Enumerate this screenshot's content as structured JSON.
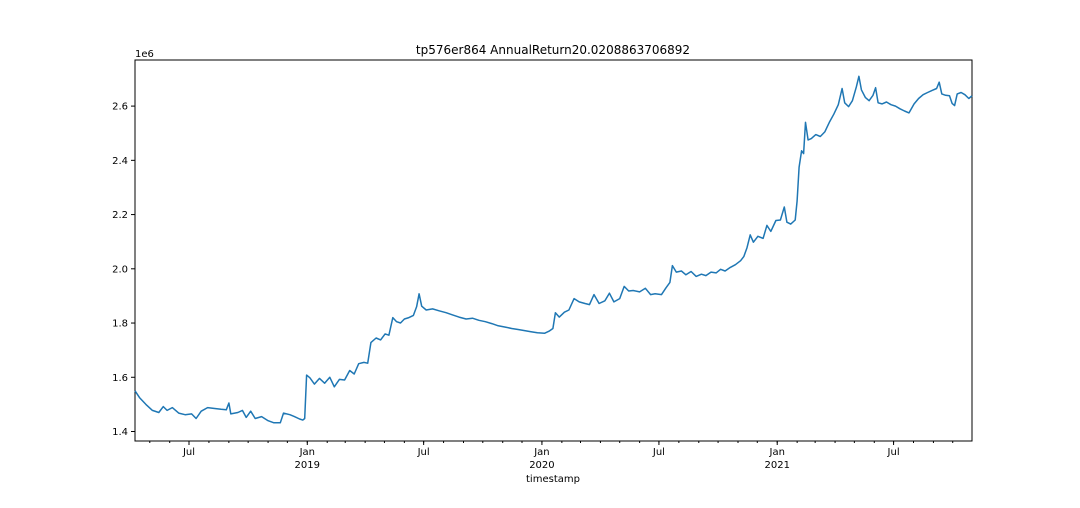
{
  "chart_data": {
    "type": "line",
    "title": "tp576er864 AnnualReturn20.0208863706892",
    "xlabel": "timestamp",
    "ylabel": "",
    "y_offset_label": "1e6",
    "x_range": [
      "2018-04-08",
      "2021-10-31"
    ],
    "ylim": [
      1365000,
      2770000
    ],
    "y_ticks": [
      {
        "value": 1400000,
        "label": "1.4"
      },
      {
        "value": 1600000,
        "label": "1.6"
      },
      {
        "value": 1800000,
        "label": "1.8"
      },
      {
        "value": 2000000,
        "label": "2.0"
      },
      {
        "value": 2200000,
        "label": "2.2"
      },
      {
        "value": 2400000,
        "label": "2.4"
      },
      {
        "value": 2600000,
        "label": "2.6"
      }
    ],
    "x_major_ticks": [
      {
        "date": "2018-07-01",
        "label": "Jul",
        "sublabel": ""
      },
      {
        "date": "2019-01-01",
        "label": "Jan",
        "sublabel": "2019"
      },
      {
        "date": "2019-07-01",
        "label": "Jul",
        "sublabel": ""
      },
      {
        "date": "2020-01-01",
        "label": "Jan",
        "sublabel": "2020"
      },
      {
        "date": "2020-07-01",
        "label": "Jul",
        "sublabel": ""
      },
      {
        "date": "2021-01-01",
        "label": "Jan",
        "sublabel": "2021"
      },
      {
        "date": "2021-07-01",
        "label": "Jul",
        "sublabel": ""
      }
    ],
    "grid": false,
    "line_color": "#1f77b4",
    "series": [
      {
        "points": [
          [
            "2018-04-08",
            1550000
          ],
          [
            "2018-04-15",
            1525000
          ],
          [
            "2018-04-25",
            1500000
          ],
          [
            "2018-05-05",
            1478000
          ],
          [
            "2018-05-15",
            1470000
          ],
          [
            "2018-05-22",
            1492000
          ],
          [
            "2018-05-28",
            1478000
          ],
          [
            "2018-06-05",
            1488000
          ],
          [
            "2018-06-15",
            1468000
          ],
          [
            "2018-06-25",
            1462000
          ],
          [
            "2018-07-05",
            1465000
          ],
          [
            "2018-07-12",
            1448000
          ],
          [
            "2018-07-20",
            1475000
          ],
          [
            "2018-07-30",
            1488000
          ],
          [
            "2018-08-10",
            1485000
          ],
          [
            "2018-08-20",
            1482000
          ],
          [
            "2018-08-28",
            1480000
          ],
          [
            "2018-09-01",
            1505000
          ],
          [
            "2018-09-04",
            1465000
          ],
          [
            "2018-09-15",
            1470000
          ],
          [
            "2018-09-22",
            1478000
          ],
          [
            "2018-09-28",
            1452000
          ],
          [
            "2018-10-05",
            1475000
          ],
          [
            "2018-10-12",
            1448000
          ],
          [
            "2018-10-22",
            1455000
          ],
          [
            "2018-11-01",
            1440000
          ],
          [
            "2018-11-10",
            1432000
          ],
          [
            "2018-11-20",
            1432000
          ],
          [
            "2018-11-25",
            1468000
          ],
          [
            "2018-12-05",
            1462000
          ],
          [
            "2018-12-12",
            1455000
          ],
          [
            "2018-12-20",
            1446000
          ],
          [
            "2018-12-25",
            1442000
          ],
          [
            "2018-12-28",
            1448000
          ],
          [
            "2018-12-31",
            1608000
          ],
          [
            "2019-01-05",
            1598000
          ],
          [
            "2019-01-12",
            1575000
          ],
          [
            "2019-01-20",
            1596000
          ],
          [
            "2019-01-28",
            1578000
          ],
          [
            "2019-02-05",
            1600000
          ],
          [
            "2019-02-12",
            1565000
          ],
          [
            "2019-02-20",
            1592000
          ],
          [
            "2019-02-28",
            1590000
          ],
          [
            "2019-03-08",
            1625000
          ],
          [
            "2019-03-15",
            1612000
          ],
          [
            "2019-03-22",
            1650000
          ],
          [
            "2019-03-30",
            1655000
          ],
          [
            "2019-04-05",
            1652000
          ],
          [
            "2019-04-10",
            1728000
          ],
          [
            "2019-04-18",
            1745000
          ],
          [
            "2019-04-25",
            1738000
          ],
          [
            "2019-05-02",
            1760000
          ],
          [
            "2019-05-08",
            1755000
          ],
          [
            "2019-05-14",
            1820000
          ],
          [
            "2019-05-20",
            1805000
          ],
          [
            "2019-05-26",
            1800000
          ],
          [
            "2019-06-01",
            1815000
          ],
          [
            "2019-06-08",
            1820000
          ],
          [
            "2019-06-15",
            1828000
          ],
          [
            "2019-06-20",
            1860000
          ],
          [
            "2019-06-24",
            1908000
          ],
          [
            "2019-06-28",
            1862000
          ],
          [
            "2019-07-05",
            1848000
          ],
          [
            "2019-07-15",
            1852000
          ],
          [
            "2019-07-25",
            1845000
          ],
          [
            "2019-08-05",
            1838000
          ],
          [
            "2019-08-15",
            1830000
          ],
          [
            "2019-08-25",
            1822000
          ],
          [
            "2019-09-05",
            1815000
          ],
          [
            "2019-09-15",
            1818000
          ],
          [
            "2019-09-25",
            1810000
          ],
          [
            "2019-10-05",
            1805000
          ],
          [
            "2019-10-15",
            1798000
          ],
          [
            "2019-10-25",
            1790000
          ],
          [
            "2019-11-05",
            1785000
          ],
          [
            "2019-11-15",
            1780000
          ],
          [
            "2019-11-25",
            1776000
          ],
          [
            "2019-12-05",
            1772000
          ],
          [
            "2019-12-15",
            1768000
          ],
          [
            "2019-12-25",
            1764000
          ],
          [
            "2020-01-05",
            1762000
          ],
          [
            "2020-01-12",
            1770000
          ],
          [
            "2020-01-18",
            1780000
          ],
          [
            "2020-01-22",
            1838000
          ],
          [
            "2020-01-28",
            1822000
          ],
          [
            "2020-02-05",
            1840000
          ],
          [
            "2020-02-12",
            1848000
          ],
          [
            "2020-02-20",
            1890000
          ],
          [
            "2020-02-28",
            1878000
          ],
          [
            "2020-03-08",
            1872000
          ],
          [
            "2020-03-15",
            1868000
          ],
          [
            "2020-03-22",
            1905000
          ],
          [
            "2020-03-30",
            1872000
          ],
          [
            "2020-04-08",
            1882000
          ],
          [
            "2020-04-15",
            1910000
          ],
          [
            "2020-04-22",
            1878000
          ],
          [
            "2020-05-01",
            1890000
          ],
          [
            "2020-05-08",
            1935000
          ],
          [
            "2020-05-15",
            1918000
          ],
          [
            "2020-05-22",
            1920000
          ],
          [
            "2020-06-01",
            1915000
          ],
          [
            "2020-06-10",
            1928000
          ],
          [
            "2020-06-18",
            1905000
          ],
          [
            "2020-06-25",
            1908000
          ],
          [
            "2020-07-05",
            1905000
          ],
          [
            "2020-07-12",
            1930000
          ],
          [
            "2020-07-18",
            1950000
          ],
          [
            "2020-07-22",
            2012000
          ],
          [
            "2020-07-28",
            1988000
          ],
          [
            "2020-08-05",
            1992000
          ],
          [
            "2020-08-12",
            1978000
          ],
          [
            "2020-08-20",
            1990000
          ],
          [
            "2020-08-28",
            1972000
          ],
          [
            "2020-09-05",
            1980000
          ],
          [
            "2020-09-12",
            1975000
          ],
          [
            "2020-09-20",
            1988000
          ],
          [
            "2020-09-28",
            1985000
          ],
          [
            "2020-10-05",
            1998000
          ],
          [
            "2020-10-12",
            1992000
          ],
          [
            "2020-10-20",
            2005000
          ],
          [
            "2020-10-28",
            2015000
          ],
          [
            "2020-11-05",
            2030000
          ],
          [
            "2020-11-10",
            2045000
          ],
          [
            "2020-11-15",
            2078000
          ],
          [
            "2020-11-20",
            2125000
          ],
          [
            "2020-11-25",
            2098000
          ],
          [
            "2020-12-02",
            2120000
          ],
          [
            "2020-12-10",
            2112000
          ],
          [
            "2020-12-16",
            2160000
          ],
          [
            "2020-12-22",
            2138000
          ],
          [
            "2020-12-30",
            2178000
          ],
          [
            "2021-01-06",
            2180000
          ],
          [
            "2021-01-12",
            2228000
          ],
          [
            "2021-01-16",
            2172000
          ],
          [
            "2021-01-22",
            2165000
          ],
          [
            "2021-01-29",
            2180000
          ],
          [
            "2021-02-01",
            2250000
          ],
          [
            "2021-02-04",
            2375000
          ],
          [
            "2021-02-08",
            2435000
          ],
          [
            "2021-02-11",
            2425000
          ],
          [
            "2021-02-14",
            2540000
          ],
          [
            "2021-02-18",
            2475000
          ],
          [
            "2021-02-23",
            2480000
          ],
          [
            "2021-03-02",
            2495000
          ],
          [
            "2021-03-09",
            2488000
          ],
          [
            "2021-03-16",
            2505000
          ],
          [
            "2021-03-23",
            2540000
          ],
          [
            "2021-03-30",
            2570000
          ],
          [
            "2021-04-06",
            2605000
          ],
          [
            "2021-04-12",
            2665000
          ],
          [
            "2021-04-16",
            2612000
          ],
          [
            "2021-04-22",
            2598000
          ],
          [
            "2021-04-28",
            2620000
          ],
          [
            "2021-05-04",
            2670000
          ],
          [
            "2021-05-08",
            2710000
          ],
          [
            "2021-05-12",
            2660000
          ],
          [
            "2021-05-18",
            2632000
          ],
          [
            "2021-05-24",
            2620000
          ],
          [
            "2021-05-30",
            2640000
          ],
          [
            "2021-06-03",
            2668000
          ],
          [
            "2021-06-07",
            2612000
          ],
          [
            "2021-06-13",
            2608000
          ],
          [
            "2021-06-20",
            2615000
          ],
          [
            "2021-06-27",
            2605000
          ],
          [
            "2021-07-04",
            2600000
          ],
          [
            "2021-07-11",
            2590000
          ],
          [
            "2021-07-18",
            2582000
          ],
          [
            "2021-07-25",
            2575000
          ],
          [
            "2021-08-02",
            2608000
          ],
          [
            "2021-08-09",
            2628000
          ],
          [
            "2021-08-16",
            2642000
          ],
          [
            "2021-08-23",
            2650000
          ],
          [
            "2021-08-30",
            2658000
          ],
          [
            "2021-09-06",
            2665000
          ],
          [
            "2021-09-10",
            2688000
          ],
          [
            "2021-09-14",
            2645000
          ],
          [
            "2021-09-20",
            2640000
          ],
          [
            "2021-09-26",
            2638000
          ],
          [
            "2021-09-30",
            2610000
          ],
          [
            "2021-10-04",
            2602000
          ],
          [
            "2021-10-08",
            2645000
          ],
          [
            "2021-10-14",
            2650000
          ],
          [
            "2021-10-20",
            2642000
          ],
          [
            "2021-10-26",
            2628000
          ],
          [
            "2021-10-31",
            2638000
          ]
        ]
      }
    ]
  }
}
